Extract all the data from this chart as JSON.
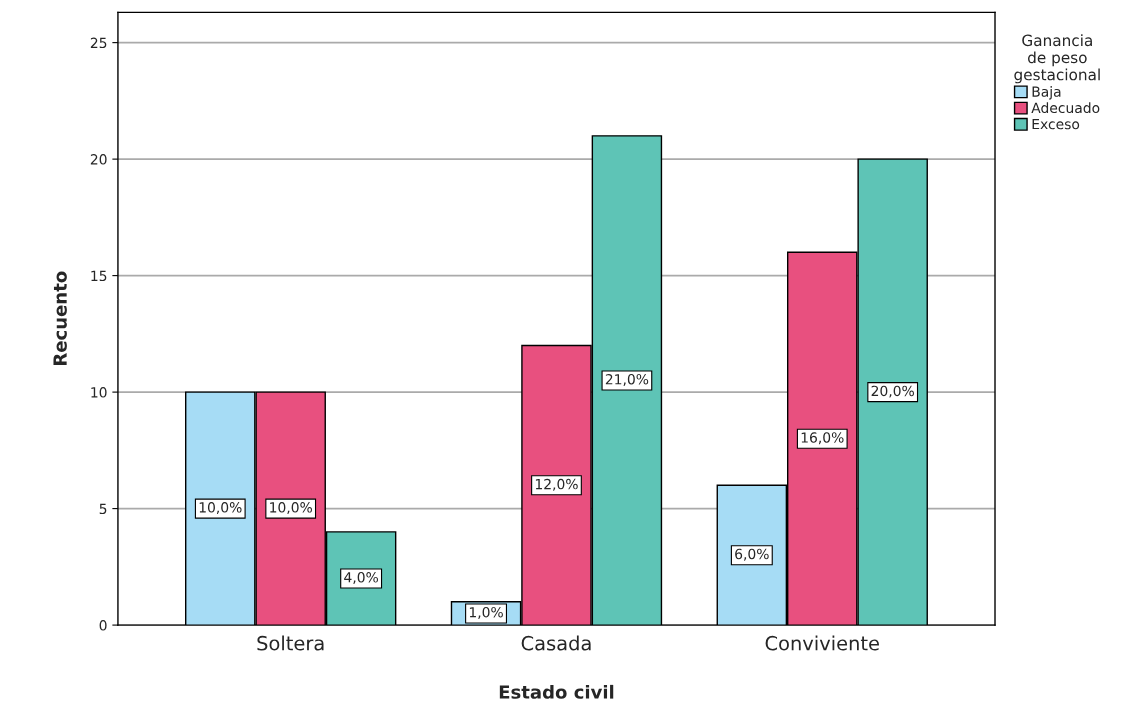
{
  "chart_data": {
    "type": "bar",
    "xlabel": "Estado civil",
    "ylabel": "Recuento",
    "legend_title": "Ganancia\nde peso\ngestacional",
    "categories": [
      "Soltera",
      "Casada",
      "Conviviente"
    ],
    "series": [
      {
        "name": "Baja",
        "color": "#a6dcf5",
        "values": [
          10,
          1,
          6
        ],
        "value_labels": [
          "10,0%",
          "1,0%",
          "6,0%"
        ]
      },
      {
        "name": "Adecuado",
        "color": "#e8507f",
        "values": [
          10,
          12,
          16
        ],
        "value_labels": [
          "10,0%",
          "12,0%",
          "16,0%"
        ]
      },
      {
        "name": "Exceso",
        "color": "#5ec4b6",
        "values": [
          4,
          21,
          20
        ],
        "value_labels": [
          "4,0%",
          "21,0%",
          "20,0%"
        ]
      }
    ],
    "ylim": [
      0,
      26.3
    ],
    "yticks": [
      0,
      5,
      10,
      15,
      20,
      25
    ],
    "grid": "y",
    "legend": "top right"
  }
}
